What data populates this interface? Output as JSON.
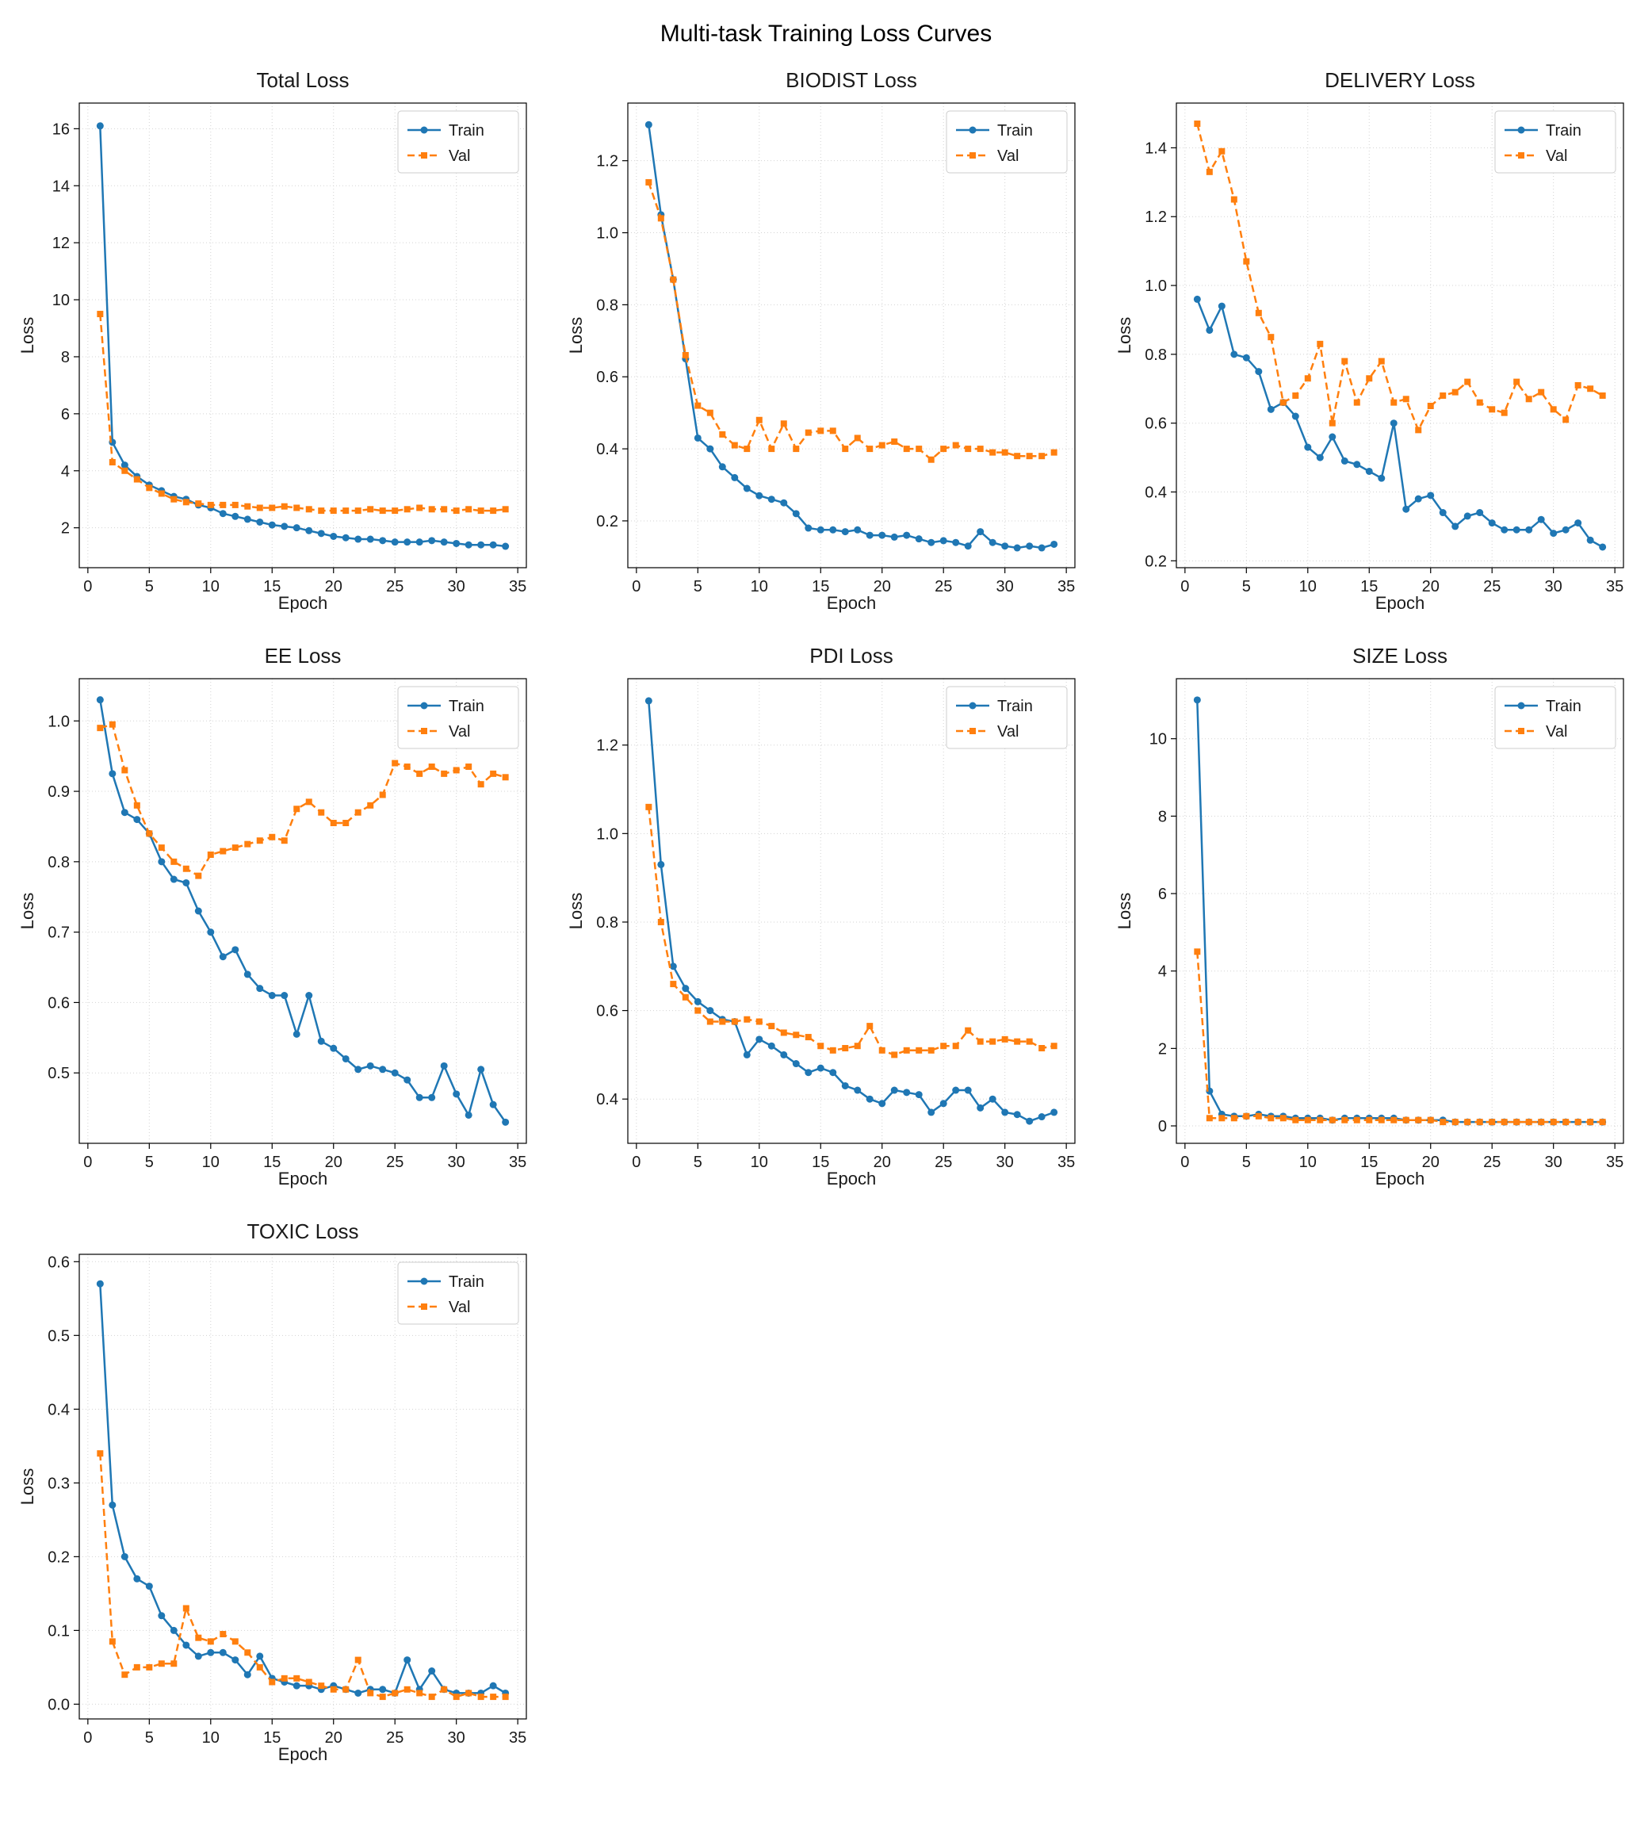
{
  "title": "Multi-task Training Loss Curves",
  "legend": {
    "train": "Train",
    "val": "Val"
  },
  "colors": {
    "train": "#1f77b4",
    "val": "#ff7f0e"
  },
  "axes": {
    "xlabel": "Epoch",
    "ylabel": "Loss",
    "xlim": [
      -0.7,
      35.7
    ],
    "xticks": [
      0,
      5,
      10,
      15,
      20,
      25,
      30,
      35
    ]
  },
  "epochs": [
    1,
    2,
    3,
    4,
    5,
    6,
    7,
    8,
    9,
    10,
    11,
    12,
    13,
    14,
    15,
    16,
    17,
    18,
    19,
    20,
    21,
    22,
    23,
    24,
    25,
    26,
    27,
    28,
    29,
    30,
    31,
    32,
    33,
    34
  ],
  "chart_data": [
    {
      "type": "line",
      "title": "Total Loss",
      "ylim": [
        0.6,
        16.9
      ],
      "yticks": [
        2,
        4,
        6,
        8,
        10,
        12,
        14,
        16
      ],
      "ydecimals": 0,
      "series": [
        {
          "name": "Train",
          "values": [
            16.1,
            5.0,
            4.2,
            3.8,
            3.5,
            3.3,
            3.1,
            3.0,
            2.8,
            2.7,
            2.5,
            2.4,
            2.3,
            2.2,
            2.1,
            2.05,
            2.0,
            1.9,
            1.8,
            1.7,
            1.65,
            1.6,
            1.6,
            1.55,
            1.5,
            1.5,
            1.5,
            1.55,
            1.5,
            1.45,
            1.4,
            1.4,
            1.4,
            1.35
          ]
        },
        {
          "name": "Val",
          "values": [
            9.5,
            4.3,
            4.0,
            3.7,
            3.4,
            3.2,
            3.0,
            2.9,
            2.85,
            2.8,
            2.8,
            2.8,
            2.75,
            2.7,
            2.7,
            2.75,
            2.7,
            2.65,
            2.6,
            2.6,
            2.6,
            2.6,
            2.65,
            2.6,
            2.6,
            2.65,
            2.7,
            2.65,
            2.65,
            2.6,
            2.65,
            2.6,
            2.6,
            2.65
          ]
        }
      ]
    },
    {
      "type": "line",
      "title": "BIODIST Loss",
      "ylim": [
        0.07,
        1.36
      ],
      "yticks": [
        0.2,
        0.4,
        0.6,
        0.8,
        1.0,
        1.2
      ],
      "ydecimals": 1,
      "series": [
        {
          "name": "Train",
          "values": [
            1.3,
            1.05,
            0.87,
            0.65,
            0.43,
            0.4,
            0.35,
            0.32,
            0.29,
            0.27,
            0.26,
            0.25,
            0.22,
            0.18,
            0.175,
            0.175,
            0.17,
            0.175,
            0.16,
            0.16,
            0.155,
            0.16,
            0.15,
            0.14,
            0.145,
            0.14,
            0.13,
            0.17,
            0.14,
            0.13,
            0.125,
            0.13,
            0.125,
            0.135
          ]
        },
        {
          "name": "Val",
          "values": [
            1.14,
            1.04,
            0.87,
            0.66,
            0.52,
            0.5,
            0.44,
            0.41,
            0.4,
            0.48,
            0.4,
            0.47,
            0.4,
            0.445,
            0.45,
            0.45,
            0.4,
            0.43,
            0.4,
            0.41,
            0.42,
            0.4,
            0.4,
            0.37,
            0.4,
            0.41,
            0.4,
            0.4,
            0.39,
            0.39,
            0.38,
            0.38,
            0.38,
            0.39
          ]
        }
      ]
    },
    {
      "type": "line",
      "title": "DELIVERY Loss",
      "ylim": [
        0.18,
        1.53
      ],
      "yticks": [
        0.2,
        0.4,
        0.6,
        0.8,
        1.0,
        1.2,
        1.4
      ],
      "ydecimals": 1,
      "series": [
        {
          "name": "Train",
          "values": [
            0.96,
            0.87,
            0.94,
            0.8,
            0.79,
            0.75,
            0.64,
            0.66,
            0.62,
            0.53,
            0.5,
            0.56,
            0.49,
            0.48,
            0.46,
            0.44,
            0.6,
            0.35,
            0.38,
            0.39,
            0.34,
            0.3,
            0.33,
            0.34,
            0.31,
            0.29,
            0.29,
            0.29,
            0.32,
            0.28,
            0.29,
            0.31,
            0.26,
            0.24
          ]
        },
        {
          "name": "Val",
          "values": [
            1.47,
            1.33,
            1.39,
            1.25,
            1.07,
            0.92,
            0.85,
            0.66,
            0.68,
            0.73,
            0.83,
            0.6,
            0.78,
            0.66,
            0.73,
            0.78,
            0.66,
            0.67,
            0.58,
            0.65,
            0.68,
            0.69,
            0.72,
            0.66,
            0.64,
            0.63,
            0.72,
            0.67,
            0.69,
            0.64,
            0.61,
            0.71,
            0.7,
            0.68
          ]
        }
      ]
    },
    {
      "type": "line",
      "title": "EE Loss",
      "ylim": [
        0.4,
        1.06
      ],
      "yticks": [
        0.5,
        0.6,
        0.7,
        0.8,
        0.9,
        1.0
      ],
      "ydecimals": 1,
      "series": [
        {
          "name": "Train",
          "values": [
            1.03,
            0.925,
            0.87,
            0.86,
            0.84,
            0.8,
            0.775,
            0.77,
            0.73,
            0.7,
            0.665,
            0.675,
            0.64,
            0.62,
            0.61,
            0.61,
            0.555,
            0.61,
            0.545,
            0.535,
            0.52,
            0.505,
            0.51,
            0.505,
            0.5,
            0.49,
            0.465,
            0.465,
            0.51,
            0.47,
            0.44,
            0.505,
            0.455,
            0.43
          ]
        },
        {
          "name": "Val",
          "values": [
            0.99,
            0.995,
            0.93,
            0.88,
            0.84,
            0.82,
            0.8,
            0.79,
            0.78,
            0.81,
            0.815,
            0.82,
            0.825,
            0.83,
            0.835,
            0.83,
            0.875,
            0.885,
            0.87,
            0.855,
            0.855,
            0.87,
            0.88,
            0.895,
            0.94,
            0.935,
            0.925,
            0.935,
            0.925,
            0.93,
            0.935,
            0.91,
            0.925,
            0.92
          ]
        }
      ]
    },
    {
      "type": "line",
      "title": "PDI Loss",
      "ylim": [
        0.3,
        1.35
      ],
      "yticks": [
        0.4,
        0.6,
        0.8,
        1.0,
        1.2
      ],
      "ydecimals": 1,
      "series": [
        {
          "name": "Train",
          "values": [
            1.3,
            0.93,
            0.7,
            0.65,
            0.62,
            0.6,
            0.58,
            0.575,
            0.5,
            0.535,
            0.52,
            0.5,
            0.48,
            0.46,
            0.47,
            0.46,
            0.43,
            0.42,
            0.4,
            0.39,
            0.42,
            0.415,
            0.41,
            0.37,
            0.39,
            0.42,
            0.42,
            0.38,
            0.4,
            0.37,
            0.365,
            0.35,
            0.36,
            0.37
          ]
        },
        {
          "name": "Val",
          "values": [
            1.06,
            0.8,
            0.66,
            0.63,
            0.6,
            0.575,
            0.575,
            0.575,
            0.58,
            0.575,
            0.565,
            0.55,
            0.545,
            0.54,
            0.52,
            0.51,
            0.515,
            0.52,
            0.565,
            0.51,
            0.5,
            0.51,
            0.51,
            0.51,
            0.52,
            0.52,
            0.555,
            0.53,
            0.53,
            0.535,
            0.53,
            0.53,
            0.515,
            0.52
          ]
        }
      ]
    },
    {
      "type": "line",
      "title": "SIZE Loss",
      "ylim": [
        -0.45,
        11.55
      ],
      "yticks": [
        0,
        2,
        4,
        6,
        8,
        10
      ],
      "ydecimals": 0,
      "series": [
        {
          "name": "Train",
          "values": [
            11.0,
            0.9,
            0.3,
            0.25,
            0.25,
            0.3,
            0.25,
            0.25,
            0.2,
            0.2,
            0.2,
            0.15,
            0.2,
            0.2,
            0.2,
            0.2,
            0.2,
            0.15,
            0.15,
            0.15,
            0.15,
            0.1,
            0.1,
            0.1,
            0.1,
            0.1,
            0.1,
            0.1,
            0.1,
            0.1,
            0.1,
            0.1,
            0.1,
            0.1
          ]
        },
        {
          "name": "Val",
          "values": [
            4.5,
            0.2,
            0.2,
            0.2,
            0.25,
            0.25,
            0.2,
            0.2,
            0.15,
            0.15,
            0.15,
            0.15,
            0.15,
            0.15,
            0.15,
            0.15,
            0.15,
            0.15,
            0.15,
            0.15,
            0.1,
            0.1,
            0.1,
            0.1,
            0.1,
            0.1,
            0.1,
            0.1,
            0.1,
            0.1,
            0.1,
            0.1,
            0.1,
            0.1
          ]
        }
      ]
    },
    {
      "type": "line",
      "title": "TOXIC Loss",
      "ylim": [
        -0.02,
        0.61
      ],
      "yticks": [
        0.0,
        0.1,
        0.2,
        0.3,
        0.4,
        0.5,
        0.6
      ],
      "ydecimals": 1,
      "series": [
        {
          "name": "Train",
          "values": [
            0.57,
            0.27,
            0.2,
            0.17,
            0.16,
            0.12,
            0.1,
            0.08,
            0.065,
            0.07,
            0.07,
            0.06,
            0.04,
            0.065,
            0.035,
            0.03,
            0.025,
            0.025,
            0.02,
            0.025,
            0.02,
            0.015,
            0.02,
            0.02,
            0.015,
            0.06,
            0.02,
            0.045,
            0.02,
            0.015,
            0.015,
            0.015,
            0.025,
            0.015
          ]
        },
        {
          "name": "Val",
          "values": [
            0.34,
            0.085,
            0.04,
            0.05,
            0.05,
            0.055,
            0.055,
            0.13,
            0.09,
            0.085,
            0.095,
            0.085,
            0.07,
            0.05,
            0.03,
            0.035,
            0.035,
            0.03,
            0.025,
            0.02,
            0.02,
            0.06,
            0.015,
            0.01,
            0.015,
            0.02,
            0.015,
            0.01,
            0.02,
            0.01,
            0.015,
            0.01,
            0.01,
            0.01
          ]
        }
      ]
    }
  ]
}
